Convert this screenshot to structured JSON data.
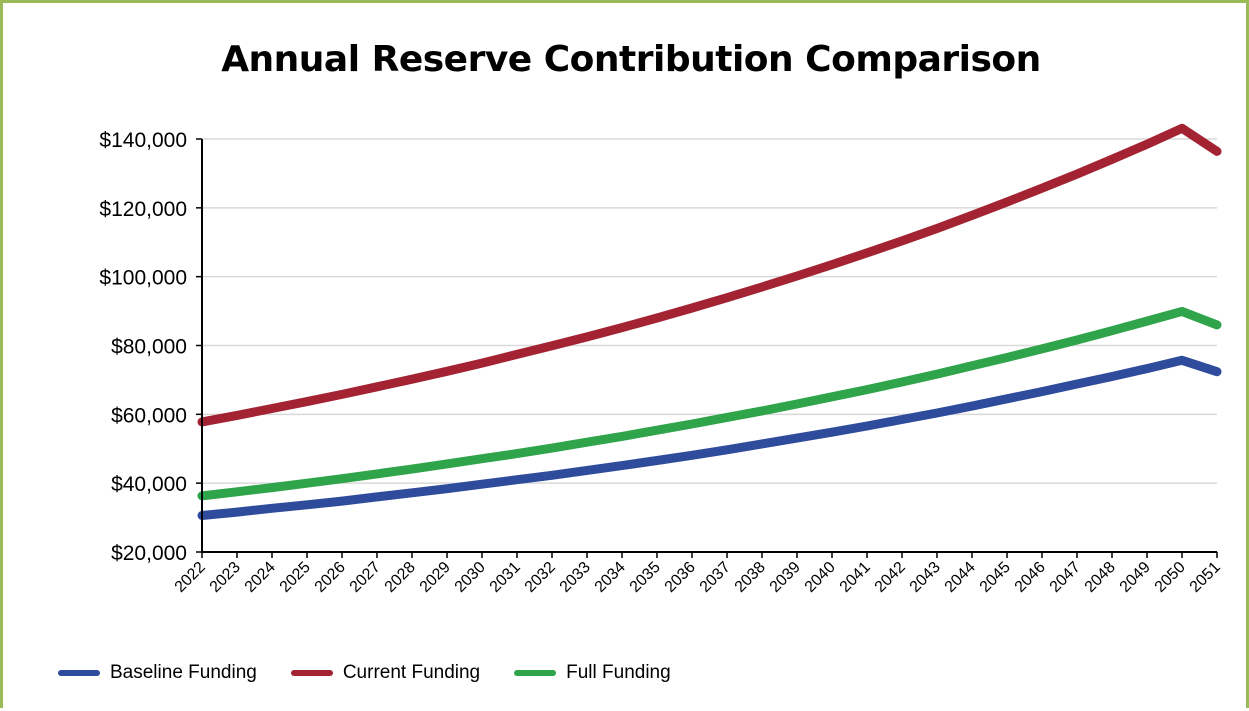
{
  "chart_data": {
    "type": "line",
    "title": "Annual Reserve Contribution Comparison",
    "xlabel": "",
    "ylabel": "",
    "x": [
      "2022",
      "2023",
      "2024",
      "2025",
      "2026",
      "2027",
      "2028",
      "2029",
      "2030",
      "2031",
      "2032",
      "2033",
      "2034",
      "2035",
      "2036",
      "2037",
      "2038",
      "2039",
      "2040",
      "2041",
      "2042",
      "2043",
      "2044",
      "2045",
      "2046",
      "2047",
      "2048",
      "2049",
      "2050",
      "2051"
    ],
    "ylim": [
      20000,
      140000
    ],
    "yticks": [
      20000,
      40000,
      60000,
      80000,
      100000,
      120000,
      140000
    ],
    "ytick_labels": [
      "$20,000",
      "$40,000",
      "$60,000",
      "$80,000",
      "$100,000",
      "$120,000",
      "$140,000"
    ],
    "grid": "horizontal",
    "legend_position": "bottom-left",
    "series": [
      {
        "name": "Baseline Funding",
        "color": "#2f4b9c",
        "values": [
          30600,
          31600,
          32700,
          33700,
          34800,
          36000,
          37200,
          38400,
          39700,
          41000,
          42300,
          43700,
          45100,
          46600,
          48100,
          49700,
          51400,
          53100,
          54800,
          56600,
          58500,
          60400,
          62400,
          64500,
          66600,
          68800,
          71000,
          73300,
          75700,
          72400
        ]
      },
      {
        "name": "Current Funding",
        "color": "#a32333",
        "values": [
          57800,
          59700,
          61700,
          63700,
          65800,
          68000,
          70200,
          72500,
          74900,
          77400,
          79900,
          82500,
          85200,
          88000,
          90900,
          93900,
          97000,
          100200,
          103500,
          106900,
          110400,
          114000,
          117800,
          121700,
          125700,
          129800,
          134100,
          138500,
          143100,
          136400
        ]
      },
      {
        "name": "Full Funding",
        "color": "#2fa44a",
        "values": [
          36300,
          37500,
          38700,
          40000,
          41300,
          42700,
          44100,
          45600,
          47100,
          48600,
          50200,
          51900,
          53600,
          55400,
          57200,
          59100,
          61000,
          63000,
          65100,
          67200,
          69400,
          71700,
          74100,
          76500,
          79000,
          81600,
          84300,
          87100,
          89900,
          86000
        ]
      }
    ]
  }
}
